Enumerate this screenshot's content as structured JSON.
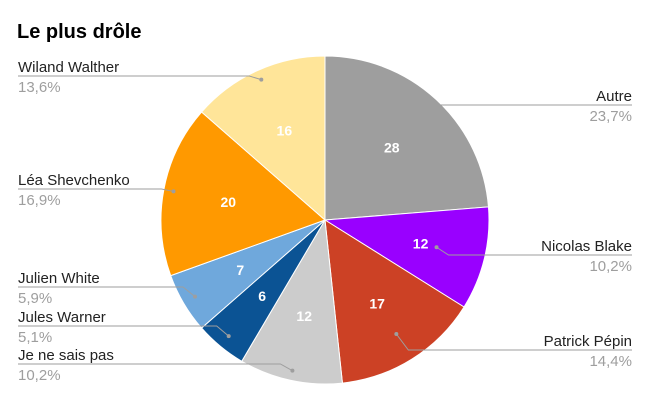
{
  "chart_data": {
    "type": "pie",
    "title": "Le plus drôle",
    "slices": [
      {
        "name": "Autre",
        "value": 28,
        "percent_label": "23,7%",
        "color": "#9e9e9e"
      },
      {
        "name": "Nicolas Blake",
        "value": 12,
        "percent_label": "10,2%",
        "color": "#9900ff"
      },
      {
        "name": "Patrick Pépin",
        "value": 17,
        "percent_label": "14,4%",
        "color": "#cc4125"
      },
      {
        "name": "Je ne sais pas",
        "value": 12,
        "percent_label": "10,2%",
        "color": "#cccccc"
      },
      {
        "name": "Jules Warner",
        "value": 6,
        "percent_label": "5,1%",
        "color": "#0b5394"
      },
      {
        "name": "Julien White",
        "value": 7,
        "percent_label": "5,9%",
        "color": "#6fa8dc"
      },
      {
        "name": "Léa Shevchenko",
        "value": 20,
        "percent_label": "16,9%",
        "color": "#ff9900"
      },
      {
        "name": "Wiland Walther",
        "value": 16,
        "percent_label": "13,6%",
        "color": "#ffe599"
      }
    ]
  }
}
